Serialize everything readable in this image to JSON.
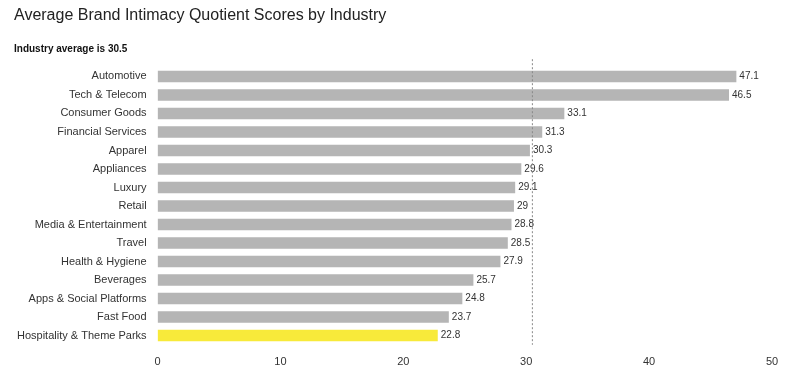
{
  "chart_data": {
    "type": "bar",
    "orientation": "horizontal",
    "title": "Average Brand Intimacy Quotient Scores by Industry",
    "subtitle": "Industry average is 30.5",
    "categories": [
      "Automotive",
      "Tech & Telecom",
      "Consumer Goods",
      "Financial Services",
      "Apparel",
      "Appliances",
      "Luxury",
      "Retail",
      "Media & Entertainment",
      "Travel",
      "Health & Hygiene",
      "Beverages",
      "Apps & Social Platforms",
      "Fast Food",
      "Hospitality & Theme Parks"
    ],
    "values": [
      47.1,
      46.5,
      33.1,
      31.3,
      30.3,
      29.6,
      29.1,
      29,
      28.8,
      28.5,
      27.9,
      25.7,
      24.8,
      23.7,
      22.8
    ],
    "colors": [
      "#b5b5b5",
      "#b5b5b5",
      "#b5b5b5",
      "#b5b5b5",
      "#b5b5b5",
      "#b5b5b5",
      "#b5b5b5",
      "#b5b5b5",
      "#b5b5b5",
      "#b5b5b5",
      "#b5b5b5",
      "#b5b5b5",
      "#b5b5b5",
      "#b5b5b5",
      "#f8ea3a"
    ],
    "xlim": [
      0,
      50
    ],
    "xticks": [
      0,
      10,
      20,
      30,
      40,
      50
    ],
    "grid": false,
    "data_labels": true,
    "average_line": 30.5
  }
}
